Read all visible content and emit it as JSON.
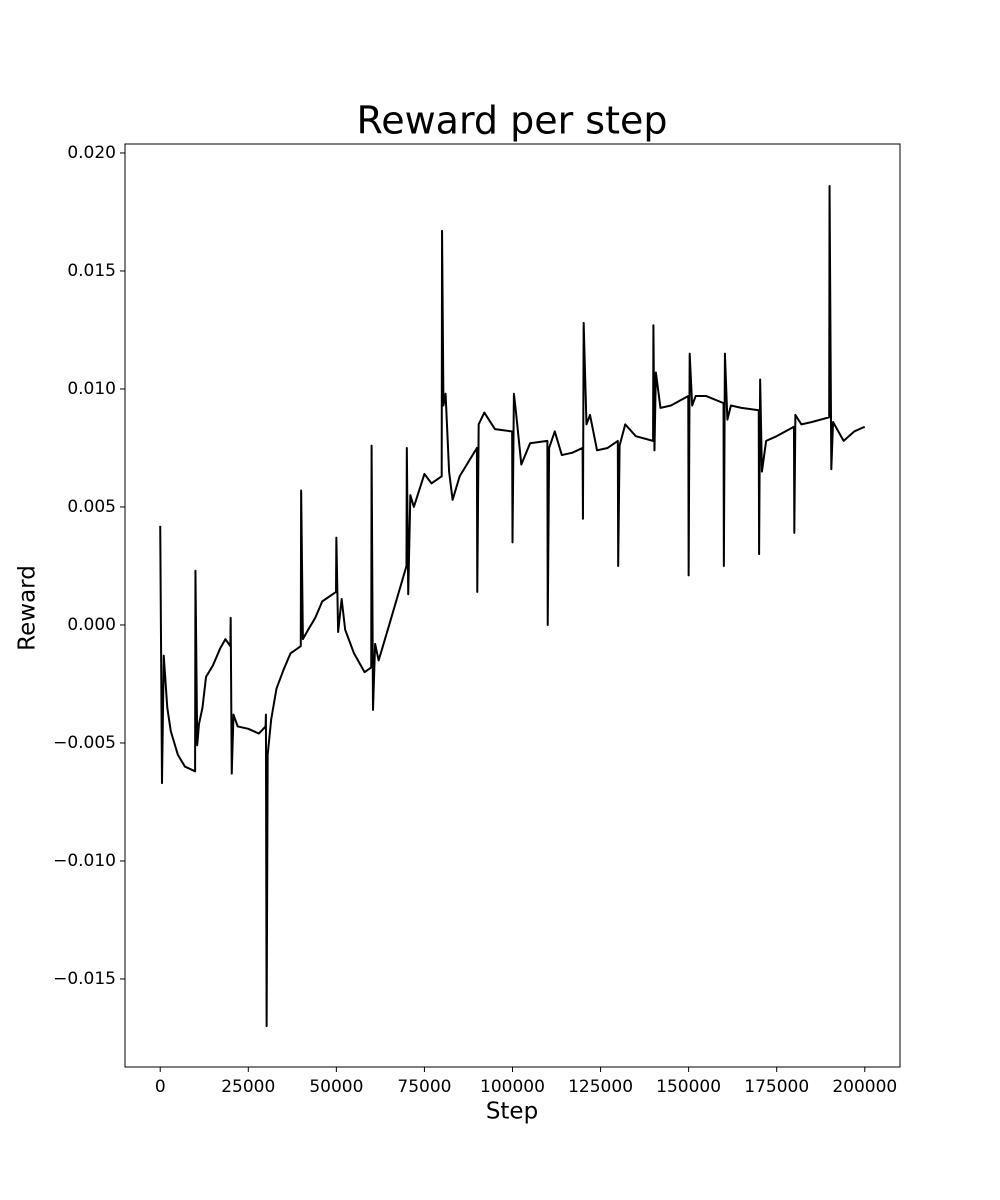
{
  "chart_data": {
    "type": "line",
    "title": "Reward per step",
    "x_label": "Step",
    "y_label": "Reward",
    "x": [
      0,
      500,
      1000,
      2000,
      3000,
      5000,
      7000,
      9900,
      10000,
      10500,
      11000,
      12000,
      13000,
      15000,
      17000,
      18500,
      19900,
      20000,
      20300,
      20800,
      22000,
      25000,
      28000,
      29900,
      30000,
      30200,
      30500,
      31500,
      33000,
      35000,
      37000,
      39900,
      40000,
      40500,
      42000,
      44000,
      46000,
      49900,
      50000,
      50500,
      51500,
      52500,
      55000,
      58000,
      59900,
      60000,
      60400,
      61000,
      62000,
      65000,
      69900,
      70000,
      70400,
      71000,
      72000,
      75000,
      77000,
      79900,
      80000,
      80400,
      81000,
      82000,
      83000,
      85000,
      89900,
      90000,
      90400,
      92000,
      95000,
      99900,
      100000,
      100400,
      101000,
      102500,
      105000,
      109900,
      110000,
      110400,
      112000,
      114000,
      117000,
      119900,
      120000,
      120200,
      121000,
      122000,
      124000,
      127000,
      129900,
      130000,
      130400,
      132000,
      135000,
      139900,
      140000,
      140300,
      140700,
      142000,
      145000,
      149900,
      150000,
      150300,
      151000,
      152000,
      155000,
      159900,
      160000,
      160300,
      161000,
      162000,
      165000,
      169900,
      170000,
      170300,
      170800,
      172000,
      175000,
      179900,
      180000,
      180300,
      182000,
      185000,
      189900,
      190000,
      190500,
      191000,
      194000,
      197000,
      200000
    ],
    "series": [
      {
        "name": "Reward",
        "color": "#000000",
        "values": [
          0.0042,
          -0.0067,
          -0.0013,
          -0.0035,
          -0.0045,
          -0.0055,
          -0.006,
          -0.0062,
          0.0023,
          -0.0051,
          -0.0042,
          -0.0035,
          -0.0022,
          -0.0017,
          -0.001,
          -0.0006,
          -0.0009,
          0.0003,
          -0.0063,
          -0.0038,
          -0.0043,
          -0.0044,
          -0.0046,
          -0.0043,
          -0.0038,
          -0.017,
          -0.0055,
          -0.004,
          -0.0027,
          -0.0019,
          -0.0012,
          -0.0009,
          0.0057,
          -0.0006,
          -0.0002,
          0.0003,
          0.001,
          0.0014,
          0.0037,
          -0.0003,
          0.0011,
          -0.0002,
          -0.0012,
          -0.002,
          -0.0018,
          0.0076,
          -0.0036,
          -0.0008,
          -0.0015,
          0.0,
          0.0025,
          0.0075,
          0.0013,
          0.0055,
          0.005,
          0.0064,
          0.006,
          0.0063,
          0.0167,
          0.0093,
          0.0098,
          0.0065,
          0.0053,
          0.0063,
          0.0075,
          0.0014,
          0.0085,
          0.009,
          0.0083,
          0.0082,
          0.0035,
          0.0098,
          0.009,
          0.0068,
          0.0077,
          0.0078,
          0.0,
          0.0075,
          0.0082,
          0.0072,
          0.0073,
          0.0075,
          0.0045,
          0.0128,
          0.0085,
          0.0089,
          0.0074,
          0.0075,
          0.0078,
          0.0025,
          0.0076,
          0.0085,
          0.008,
          0.0078,
          0.0127,
          0.0074,
          0.0107,
          0.0092,
          0.0093,
          0.0097,
          0.0021,
          0.0115,
          0.0093,
          0.0097,
          0.0097,
          0.0094,
          0.0025,
          0.0115,
          0.0087,
          0.0093,
          0.0092,
          0.0091,
          0.003,
          0.0104,
          0.0065,
          0.0078,
          0.008,
          0.0084,
          0.0039,
          0.0089,
          0.0085,
          0.0086,
          0.0088,
          0.0186,
          0.0066,
          0.0086,
          0.0078,
          0.0082,
          0.0084
        ]
      }
    ],
    "xlim": [
      -10000,
      210000
    ],
    "ylim": [
      -0.01873,
      0.02038
    ],
    "xticks": [
      0,
      25000,
      50000,
      75000,
      100000,
      125000,
      150000,
      175000,
      200000
    ],
    "yticks": [
      {
        "value": -0.015,
        "label": "−0.015"
      },
      {
        "value": -0.01,
        "label": "−0.010"
      },
      {
        "value": -0.005,
        "label": "−0.005"
      },
      {
        "value": 0,
        "label": "0.000"
      },
      {
        "value": 0.005,
        "label": "0.005"
      },
      {
        "value": 0.01,
        "label": "0.010"
      },
      {
        "value": 0.015,
        "label": "0.015"
      },
      {
        "value": 0.02,
        "label": "0.020"
      }
    ],
    "grid": false
  }
}
